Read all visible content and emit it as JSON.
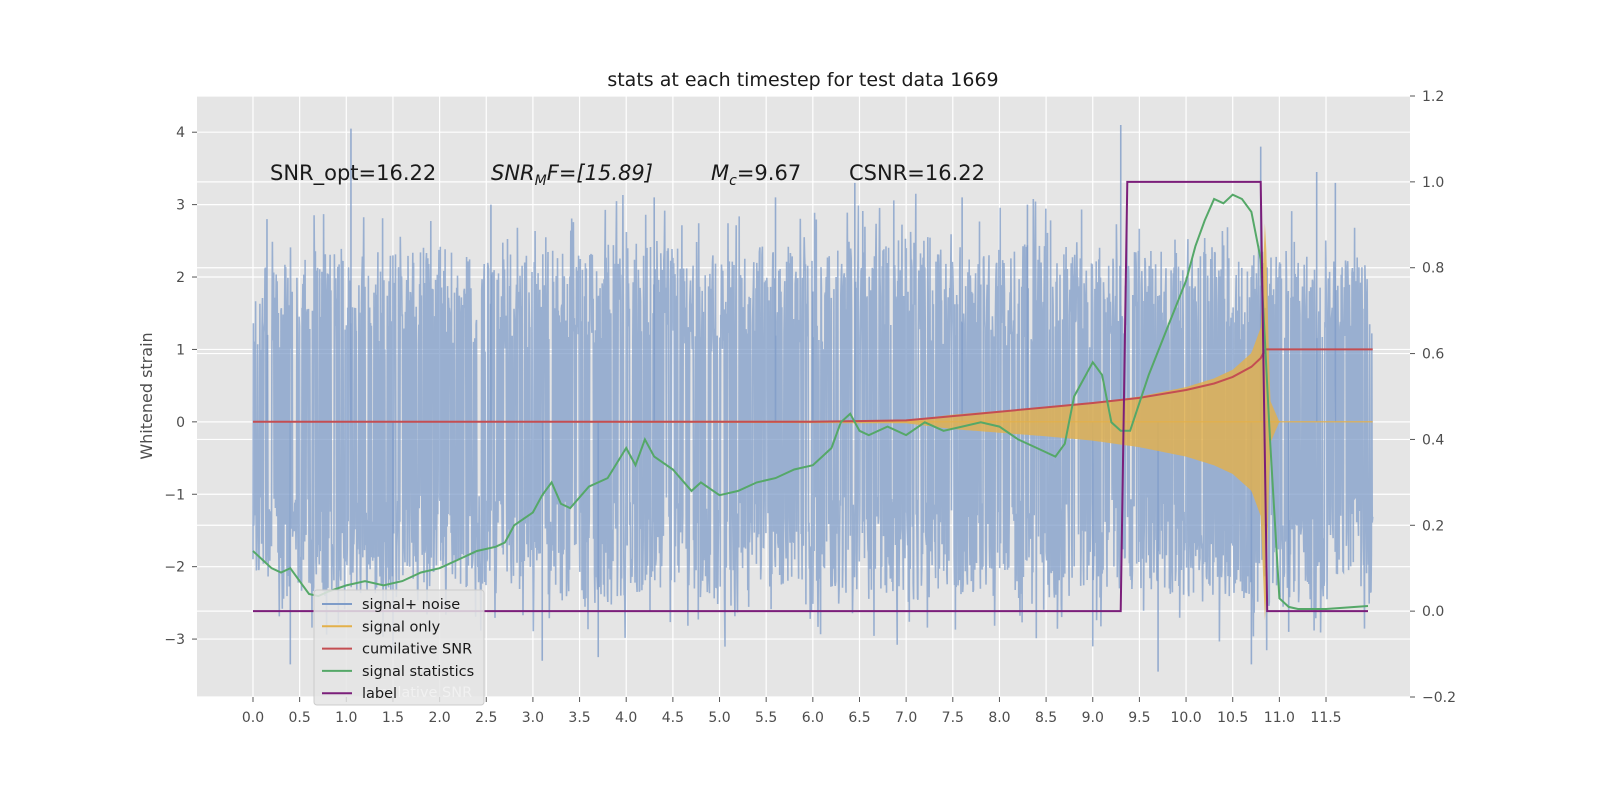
{
  "chart_data": {
    "type": "line",
    "title": "stats at each timestep for test data 1669",
    "ylabel": "Whitened strain",
    "x_range": [
      -0.6,
      12.4
    ],
    "ylim_left": [
      -3.8,
      4.5
    ],
    "ylim_right": [
      -0.2,
      1.2
    ],
    "grid": true,
    "legend_location": "lower left",
    "x_ticks": [
      "0.0",
      "0.5",
      "1.0",
      "1.5",
      "2.0",
      "2.5",
      "3.0",
      "3.5",
      "4.0",
      "4.5",
      "5.0",
      "5.5",
      "6.0",
      "6.5",
      "7.0",
      "7.5",
      "8.0",
      "8.5",
      "9.0",
      "9.5",
      "10.0",
      "10.5",
      "11.0",
      "11.5"
    ],
    "y_ticks_left": [
      "−3",
      "−2",
      "−1",
      "0",
      "1",
      "2",
      "3",
      "4"
    ],
    "y_ticks_right": [
      "−0.2",
      "0.0",
      "0.2",
      "0.4",
      "0.6",
      "0.8",
      "1.0",
      "1.2"
    ],
    "annotations": {
      "snr_opt": "SNR_opt=16.22",
      "snr_mf_name": "SNR",
      "snr_mf_sub": "M",
      "snr_mf_rest": "F=[15.89]",
      "mc_name": "M",
      "mc_sub": "c",
      "mc_rest": "=9.67",
      "csnr": "CSNR=16.22"
    },
    "legend_overlap_text": "cumilative SNR",
    "series": [
      {
        "name": "signal+ noise",
        "axis": "left",
        "color": "#7f9cc8",
        "x_range": [
          0.0,
          12.0
        ],
        "envelope_upper": [
          2.0,
          2.2,
          2.3,
          2.2,
          2.4,
          2.1,
          2.3,
          2.2,
          2.5,
          2.3,
          2.1,
          2.4,
          2.2,
          2.3,
          2.5,
          2.2,
          2.3,
          2.4,
          2.2,
          2.3,
          2.2,
          2.4,
          2.3,
          2.1,
          2.2
        ],
        "envelope_lower": [
          -2.0,
          -2.3,
          -2.2,
          -2.4,
          -2.1,
          -2.3,
          -2.2,
          -2.5,
          -2.3,
          -2.2,
          -2.4,
          -2.1,
          -2.3,
          -2.2,
          -2.4,
          -2.3,
          -2.2,
          -2.5,
          -2.3,
          -2.2,
          -2.4,
          -2.3,
          -2.5,
          -2.2,
          -2.3
        ],
        "peaks": [
          {
            "x": 0.4,
            "y": -3.35
          },
          {
            "x": 1.05,
            "y": 4.05
          },
          {
            "x": 1.5,
            "y": -3.2
          },
          {
            "x": 3.1,
            "y": -3.3
          },
          {
            "x": 3.7,
            "y": -3.25
          },
          {
            "x": 6.0,
            "y": 1.8
          },
          {
            "x": 6.45,
            "y": 3.3
          },
          {
            "x": 9.3,
            "y": 4.1
          },
          {
            "x": 9.7,
            "y": -3.45
          },
          {
            "x": 10.8,
            "y": 3.8
          },
          {
            "x": 10.7,
            "y": -3.35
          },
          {
            "x": 11.4,
            "y": 3.45
          },
          {
            "x": 0.15,
            "y": 2.8
          },
          {
            "x": 2.55,
            "y": 3.0
          },
          {
            "x": 4.3,
            "y": 3.1
          },
          {
            "x": 5.6,
            "y": 3.1
          },
          {
            "x": 7.6,
            "y": 3.1
          },
          {
            "x": 8.3,
            "y": 3.0
          },
          {
            "x": 9.0,
            "y": -3.1
          },
          {
            "x": 11.1,
            "y": -2.9
          },
          {
            "x": 11.6,
            "y": 3.3
          }
        ]
      },
      {
        "name": "signal only",
        "axis": "left",
        "color": "#e3b04a",
        "x": [
          0.0,
          7.0,
          7.5,
          8.0,
          8.5,
          9.0,
          9.5,
          10.0,
          10.3,
          10.5,
          10.7,
          10.8,
          10.85,
          10.9,
          11.0,
          12.0
        ],
        "amplitude": [
          0.0,
          0.02,
          0.1,
          0.15,
          0.2,
          0.26,
          0.35,
          0.48,
          0.6,
          0.72,
          0.95,
          1.3,
          2.9,
          0.3,
          0.0,
          0.0
        ]
      },
      {
        "name": "cumilative SNR",
        "axis": "left",
        "color": "#c44e52",
        "x": [
          0.0,
          6.0,
          7.0,
          7.5,
          8.0,
          8.5,
          9.0,
          9.5,
          10.0,
          10.3,
          10.5,
          10.7,
          10.8,
          10.85,
          10.9,
          12.0
        ],
        "y": [
          0.0,
          0.0,
          0.02,
          0.08,
          0.14,
          0.2,
          0.26,
          0.33,
          0.44,
          0.53,
          0.62,
          0.76,
          0.88,
          1.0,
          1.0,
          1.0
        ]
      },
      {
        "name": "signal statistics",
        "axis": "right",
        "color": "#55a868",
        "x": [
          0.0,
          0.1,
          0.2,
          0.3,
          0.4,
          0.5,
          0.6,
          0.7,
          0.8,
          1.0,
          1.2,
          1.4,
          1.6,
          1.8,
          2.0,
          2.2,
          2.4,
          2.6,
          2.7,
          2.8,
          3.0,
          3.1,
          3.2,
          3.3,
          3.4,
          3.6,
          3.8,
          4.0,
          4.1,
          4.2,
          4.3,
          4.5,
          4.7,
          4.8,
          5.0,
          5.2,
          5.4,
          5.6,
          5.8,
          6.0,
          6.1,
          6.2,
          6.3,
          6.4,
          6.5,
          6.6,
          6.8,
          7.0,
          7.2,
          7.4,
          7.6,
          7.8,
          8.0,
          8.2,
          8.4,
          8.6,
          8.7,
          8.8,
          9.0,
          9.1,
          9.2,
          9.3,
          9.4,
          9.6,
          9.8,
          10.0,
          10.1,
          10.2,
          10.3,
          10.4,
          10.5,
          10.6,
          10.7,
          10.8,
          10.9,
          11.0,
          11.1,
          11.2,
          11.5,
          11.95
        ],
        "y": [
          0.14,
          0.12,
          0.1,
          0.09,
          0.1,
          0.07,
          0.04,
          0.035,
          0.045,
          0.06,
          0.07,
          0.06,
          0.07,
          0.09,
          0.1,
          0.12,
          0.14,
          0.15,
          0.16,
          0.2,
          0.23,
          0.27,
          0.3,
          0.25,
          0.24,
          0.29,
          0.31,
          0.38,
          0.34,
          0.4,
          0.36,
          0.33,
          0.28,
          0.3,
          0.27,
          0.28,
          0.3,
          0.31,
          0.33,
          0.34,
          0.36,
          0.38,
          0.44,
          0.46,
          0.42,
          0.41,
          0.43,
          0.41,
          0.44,
          0.42,
          0.43,
          0.44,
          0.43,
          0.4,
          0.38,
          0.36,
          0.39,
          0.5,
          0.58,
          0.55,
          0.44,
          0.42,
          0.42,
          0.55,
          0.66,
          0.77,
          0.85,
          0.91,
          0.96,
          0.95,
          0.97,
          0.96,
          0.93,
          0.82,
          0.4,
          0.03,
          0.01,
          0.005,
          0.005,
          0.012
        ]
      },
      {
        "name": "label",
        "axis": "right",
        "color": "#7b1e7a",
        "x": [
          0.0,
          9.3,
          9.37,
          10.8,
          10.87,
          11.95
        ],
        "y": [
          0.0,
          0.0,
          1.0,
          1.0,
          0.0,
          0.0
        ]
      }
    ]
  }
}
